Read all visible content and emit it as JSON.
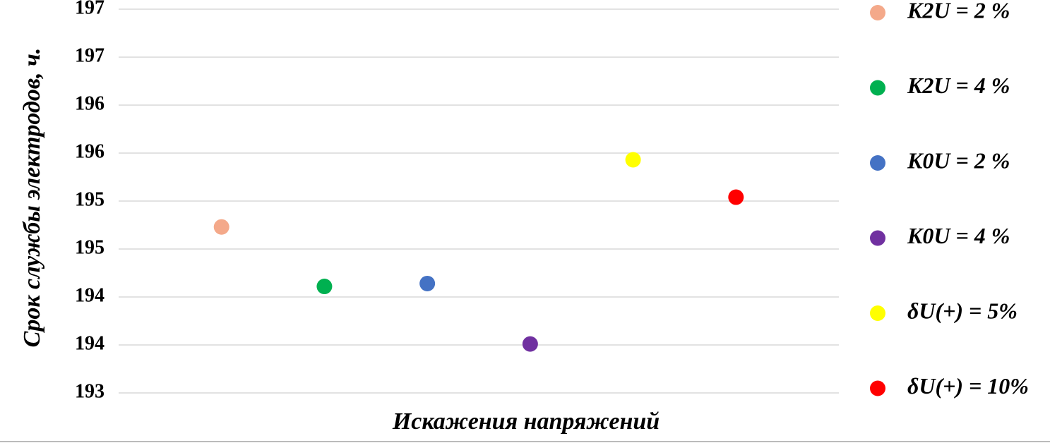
{
  "chart_data": {
    "type": "scatter",
    "y_label": "Срок службы электродов, ч.",
    "x_label": "Искажения напряжений",
    "xlim": [
      0,
      7
    ],
    "ylim": [
      193,
      197
    ],
    "yticks": [
      193,
      {
        "value": 193.5,
        "label": "194"
      },
      194,
      {
        "value": 194.5,
        "label": "195"
      },
      195,
      {
        "value": 195.5,
        "label": "196"
      },
      196,
      {
        "value": 196.5,
        "label": "197"
      },
      197
    ],
    "grid": true,
    "legend": "right",
    "series": [
      {
        "name": "K2U = 2 %",
        "color": "#f4a98a",
        "x": [
          1
        ],
        "values": [
          194.73
        ]
      },
      {
        "name": "K2U = 4 %",
        "color": "#00b050",
        "x": [
          2
        ],
        "values": [
          194.11
        ]
      },
      {
        "name": "K0U = 2 %",
        "color": "#4472c4",
        "x": [
          3
        ],
        "values": [
          194.14
        ]
      },
      {
        "name": "K0U = 4 %",
        "color": "#7030a0",
        "x": [
          4
        ],
        "values": [
          193.51
        ]
      },
      {
        "name": "δU(+) = 5%",
        "color": "#ffff00",
        "x": [
          5
        ],
        "values": [
          195.43
        ]
      },
      {
        "name": "δU(+) = 10%",
        "color": "#ff0000",
        "x": [
          6
        ],
        "values": [
          195.04
        ]
      }
    ]
  }
}
